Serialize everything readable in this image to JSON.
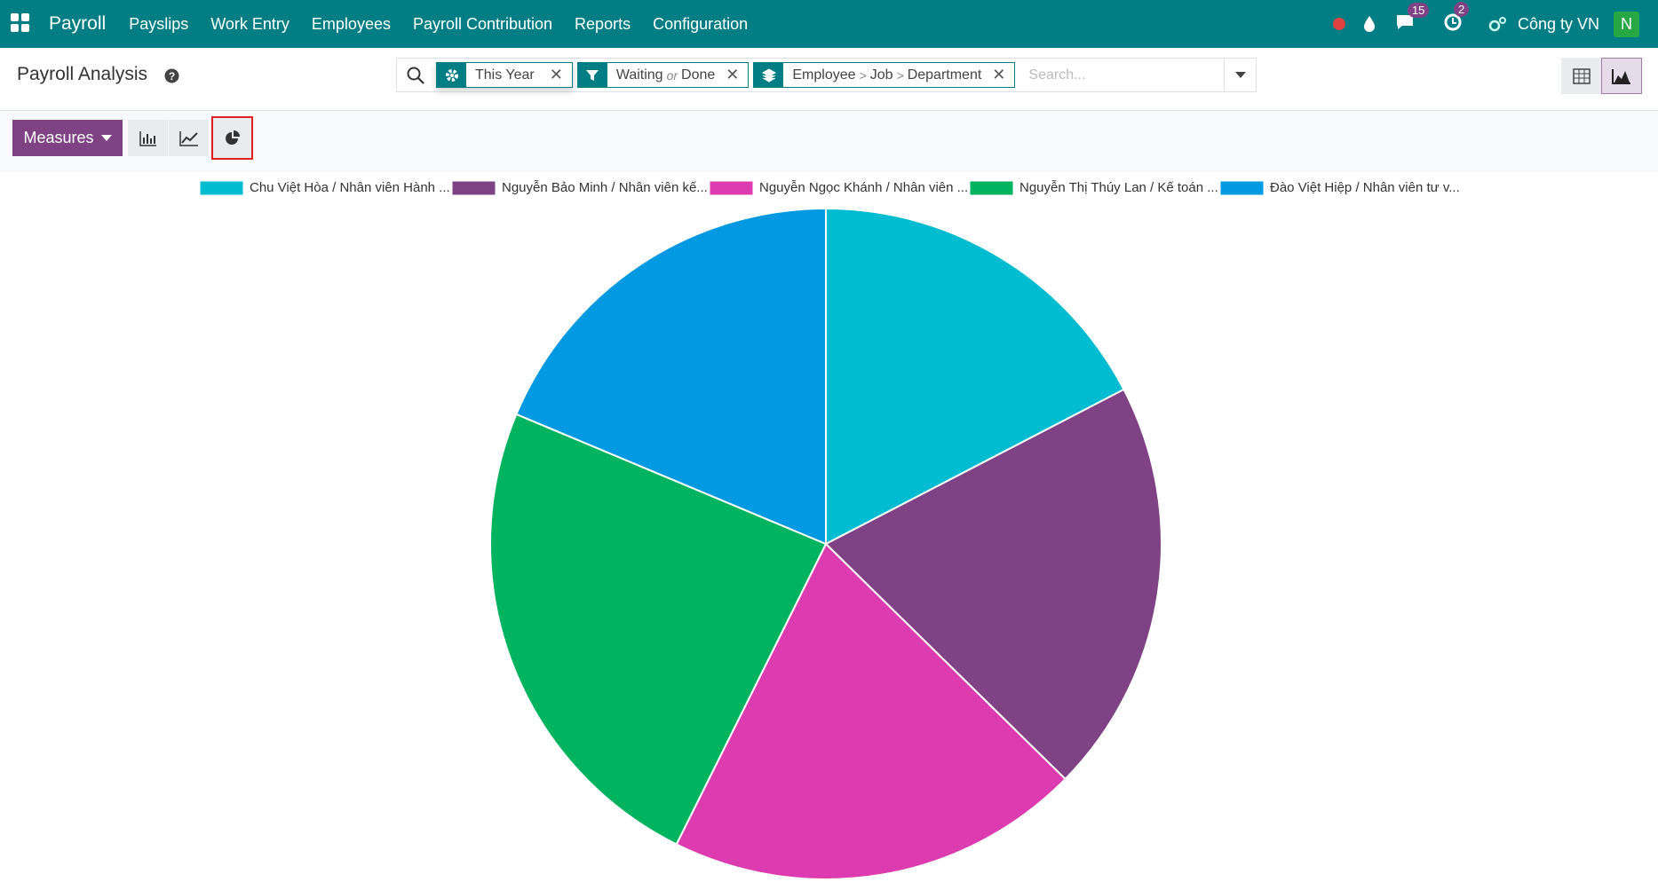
{
  "navbar": {
    "app": "Payroll",
    "menu": [
      "Payslips",
      "Work Entry",
      "Employees",
      "Payroll Contribution",
      "Reports",
      "Configuration"
    ],
    "messages_badge": 15,
    "activities_badge": 2,
    "company": "Công ty VN",
    "avatar": "N"
  },
  "control_panel": {
    "title": "Payroll Analysis",
    "facets": [
      {
        "values": [
          "This Year"
        ]
      },
      {
        "values": [
          "Waiting",
          "Done"
        ],
        "separator": "or"
      },
      {
        "values": [
          "Employee",
          "Job",
          "Department"
        ],
        "separator": ">"
      }
    ],
    "search_placeholder": "Search...",
    "measures_button": "Measures"
  },
  "chart_data": {
    "type": "pie",
    "categories": [
      "Chu Việt Hòa / Nhân viên Hành ...",
      "Nguyễn Bảo Minh / Nhân viên kế...",
      "Nguyễn Ngọc Khánh / Nhân viên ...",
      "Nguyễn Thị Thúy Lan / Kế toán ...",
      "Đào Việt Hiệp / Nhân viên tư v..."
    ],
    "values": [
      17.4,
      20,
      20,
      24,
      18.7
    ],
    "colors": [
      "#00bcd1",
      "#7f4385",
      "#dd3bb0",
      "#00b35f",
      "#0099e2"
    ],
    "legend": "top"
  }
}
